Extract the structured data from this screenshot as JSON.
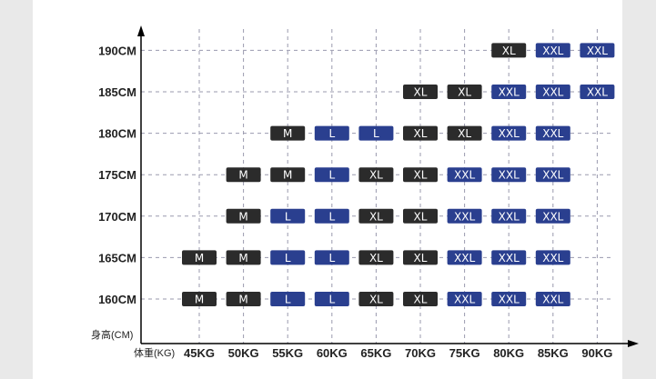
{
  "chart_data": {
    "type": "table",
    "x_axis_title": "体重(KG)",
    "y_axis_title": "身高(CM)",
    "x_categories": [
      "45KG",
      "50KG",
      "55KG",
      "60KG",
      "65KG",
      "70KG",
      "75KG",
      "80KG",
      "85KG",
      "90KG"
    ],
    "y_categories": [
      "160CM",
      "165CM",
      "170CM",
      "175CM",
      "180CM",
      "185CM",
      "190CM"
    ],
    "grid": true,
    "colors": {
      "dark": "#2b2b2b",
      "blue": "#2a3f8f",
      "grid": "#9a9aae",
      "axis": "#000000"
    },
    "cells": [
      {
        "x": "45KG",
        "y": "160CM",
        "size": "M",
        "color": "dark"
      },
      {
        "x": "50KG",
        "y": "160CM",
        "size": "M",
        "color": "dark"
      },
      {
        "x": "55KG",
        "y": "160CM",
        "size": "L",
        "color": "blue"
      },
      {
        "x": "60KG",
        "y": "160CM",
        "size": "L",
        "color": "blue"
      },
      {
        "x": "65KG",
        "y": "160CM",
        "size": "XL",
        "color": "dark"
      },
      {
        "x": "70KG",
        "y": "160CM",
        "size": "XL",
        "color": "dark"
      },
      {
        "x": "75KG",
        "y": "160CM",
        "size": "XXL",
        "color": "blue"
      },
      {
        "x": "80KG",
        "y": "160CM",
        "size": "XXL",
        "color": "blue"
      },
      {
        "x": "85KG",
        "y": "160CM",
        "size": "XXL",
        "color": "blue"
      },
      {
        "x": "45KG",
        "y": "165CM",
        "size": "M",
        "color": "dark"
      },
      {
        "x": "50KG",
        "y": "165CM",
        "size": "M",
        "color": "dark"
      },
      {
        "x": "55KG",
        "y": "165CM",
        "size": "L",
        "color": "blue"
      },
      {
        "x": "60KG",
        "y": "165CM",
        "size": "L",
        "color": "blue"
      },
      {
        "x": "65KG",
        "y": "165CM",
        "size": "XL",
        "color": "dark"
      },
      {
        "x": "70KG",
        "y": "165CM",
        "size": "XL",
        "color": "dark"
      },
      {
        "x": "75KG",
        "y": "165CM",
        "size": "XXL",
        "color": "blue"
      },
      {
        "x": "80KG",
        "y": "165CM",
        "size": "XXL",
        "color": "blue"
      },
      {
        "x": "85KG",
        "y": "165CM",
        "size": "XXL",
        "color": "blue"
      },
      {
        "x": "50KG",
        "y": "170CM",
        "size": "M",
        "color": "dark"
      },
      {
        "x": "55KG",
        "y": "170CM",
        "size": "L",
        "color": "blue"
      },
      {
        "x": "60KG",
        "y": "170CM",
        "size": "L",
        "color": "blue"
      },
      {
        "x": "65KG",
        "y": "170CM",
        "size": "XL",
        "color": "dark"
      },
      {
        "x": "70KG",
        "y": "170CM",
        "size": "XL",
        "color": "dark"
      },
      {
        "x": "75KG",
        "y": "170CM",
        "size": "XXL",
        "color": "blue"
      },
      {
        "x": "80KG",
        "y": "170CM",
        "size": "XXL",
        "color": "blue"
      },
      {
        "x": "85KG",
        "y": "170CM",
        "size": "XXL",
        "color": "blue"
      },
      {
        "x": "50KG",
        "y": "175CM",
        "size": "M",
        "color": "dark"
      },
      {
        "x": "55KG",
        "y": "175CM",
        "size": "M",
        "color": "dark"
      },
      {
        "x": "60KG",
        "y": "175CM",
        "size": "L",
        "color": "blue"
      },
      {
        "x": "65KG",
        "y": "175CM",
        "size": "XL",
        "color": "dark"
      },
      {
        "x": "70KG",
        "y": "175CM",
        "size": "XL",
        "color": "dark"
      },
      {
        "x": "75KG",
        "y": "175CM",
        "size": "XXL",
        "color": "blue"
      },
      {
        "x": "80KG",
        "y": "175CM",
        "size": "XXL",
        "color": "blue"
      },
      {
        "x": "85KG",
        "y": "175CM",
        "size": "XXL",
        "color": "blue"
      },
      {
        "x": "55KG",
        "y": "180CM",
        "size": "M",
        "color": "dark"
      },
      {
        "x": "60KG",
        "y": "180CM",
        "size": "L",
        "color": "blue"
      },
      {
        "x": "65KG",
        "y": "180CM",
        "size": "L",
        "color": "blue"
      },
      {
        "x": "70KG",
        "y": "180CM",
        "size": "XL",
        "color": "dark"
      },
      {
        "x": "75KG",
        "y": "180CM",
        "size": "XL",
        "color": "dark"
      },
      {
        "x": "80KG",
        "y": "180CM",
        "size": "XXL",
        "color": "blue"
      },
      {
        "x": "85KG",
        "y": "180CM",
        "size": "XXL",
        "color": "blue"
      },
      {
        "x": "70KG",
        "y": "185CM",
        "size": "XL",
        "color": "dark"
      },
      {
        "x": "75KG",
        "y": "185CM",
        "size": "XL",
        "color": "dark"
      },
      {
        "x": "80KG",
        "y": "185CM",
        "size": "XXL",
        "color": "blue"
      },
      {
        "x": "85KG",
        "y": "185CM",
        "size": "XXL",
        "color": "blue"
      },
      {
        "x": "90KG",
        "y": "185CM",
        "size": "XXL",
        "color": "blue"
      },
      {
        "x": "80KG",
        "y": "190CM",
        "size": "XL",
        "color": "dark"
      },
      {
        "x": "85KG",
        "y": "190CM",
        "size": "XXL",
        "color": "blue"
      },
      {
        "x": "90KG",
        "y": "190CM",
        "size": "XXL",
        "color": "blue"
      }
    ]
  }
}
